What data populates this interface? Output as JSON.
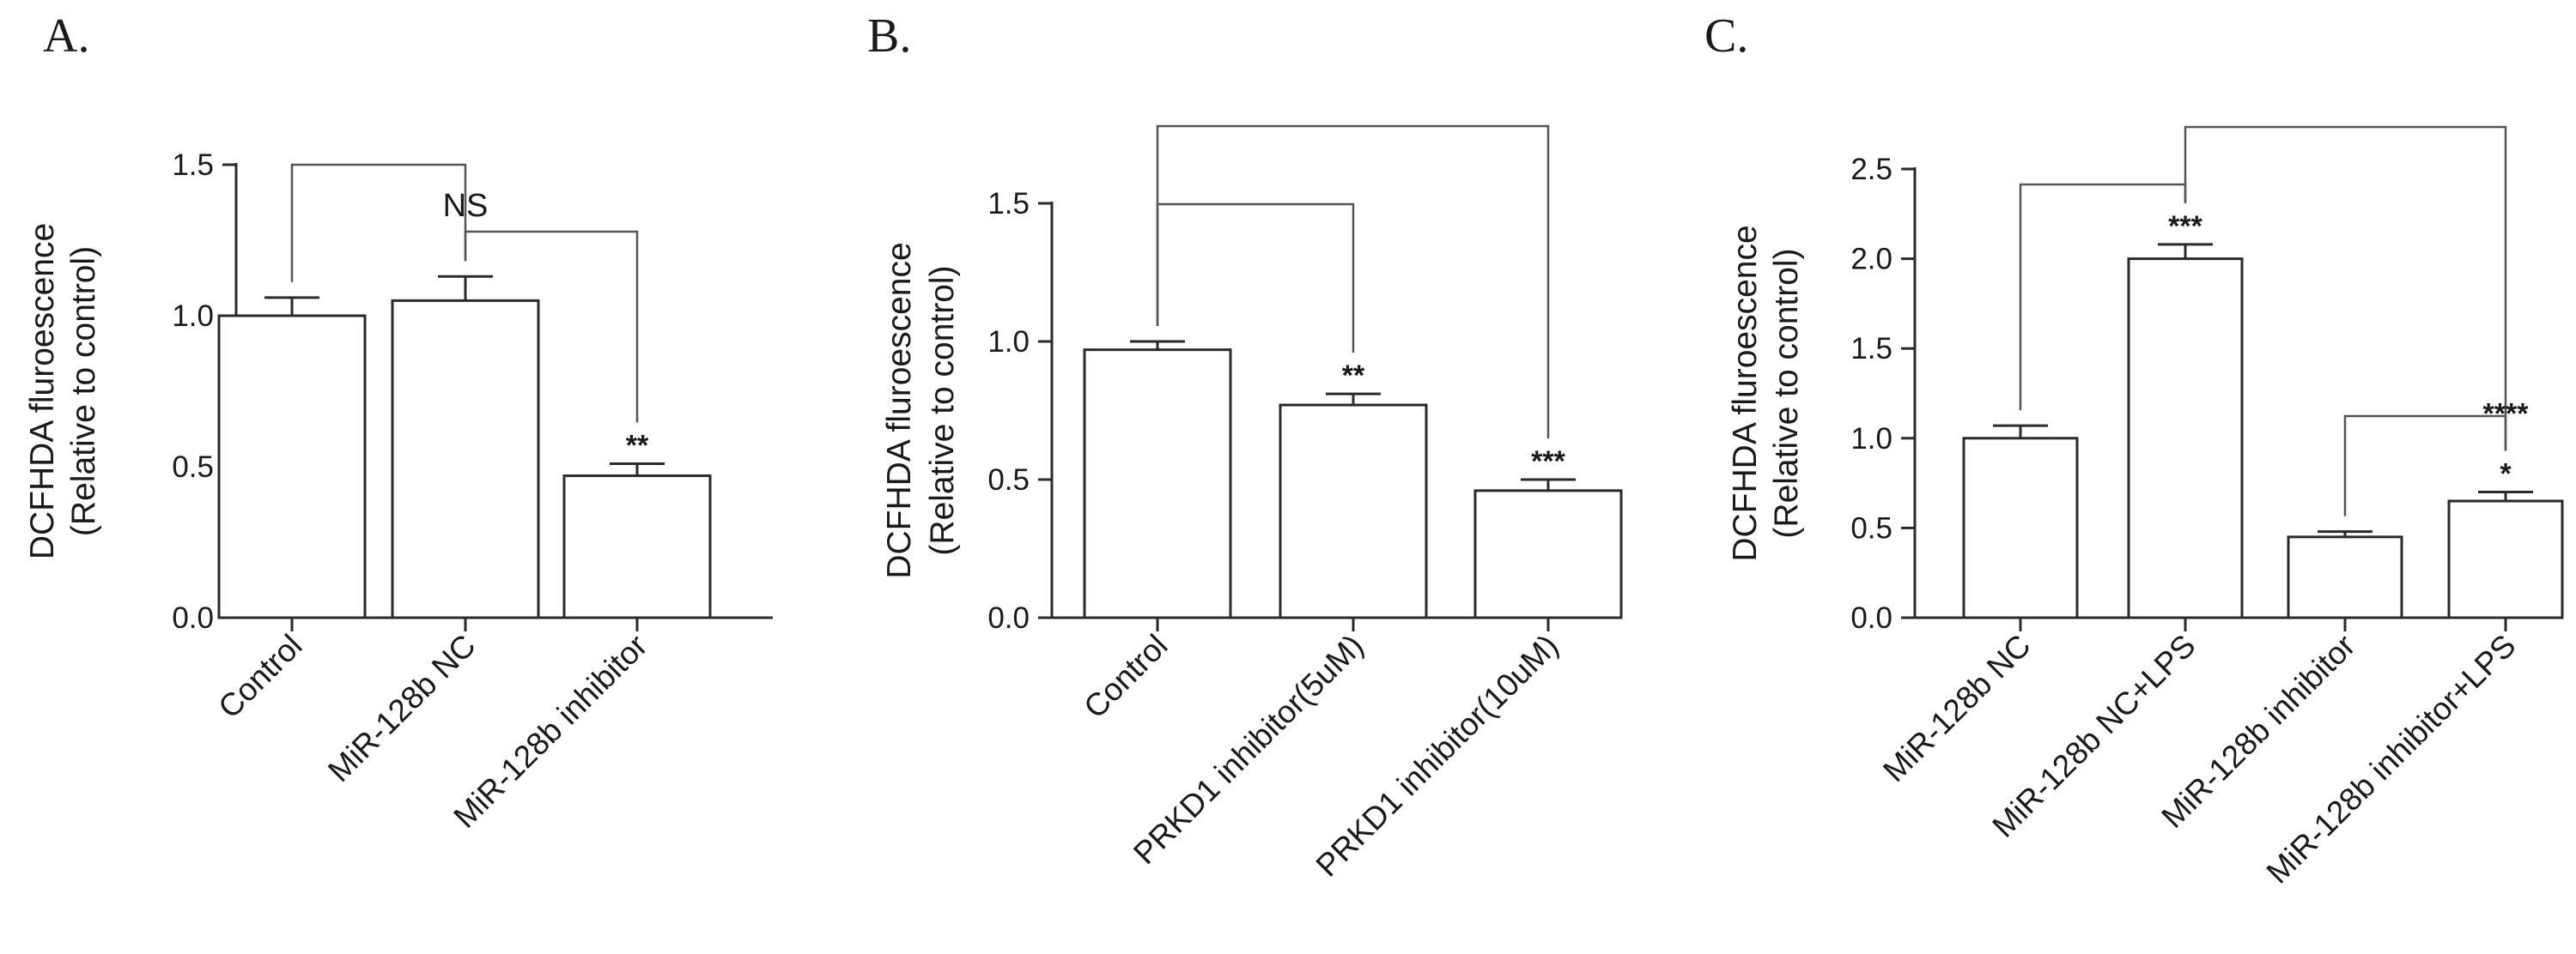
{
  "chart_data": [
    {
      "type": "bar",
      "panel_label": "A.",
      "ylabel": [
        "DCFHDA fluroescence",
        "(Relative to control)"
      ],
      "ylim": [
        0,
        1.5
      ],
      "yticks": [
        "0.0",
        "0.5",
        "1.0",
        "1.5"
      ],
      "categories": [
        "Control",
        "MiR-128b NC",
        "MiR-128b inhibitor"
      ],
      "values": [
        1.0,
        1.05,
        0.47
      ],
      "errors": [
        0.06,
        0.08,
        0.04
      ],
      "stars": [
        "",
        "",
        "**"
      ],
      "annotations": [
        {
          "from": 0,
          "to": 1,
          "label": "NS"
        },
        {
          "from": 1,
          "to": 2,
          "label": ""
        }
      ]
    },
    {
      "type": "bar",
      "panel_label": "B.",
      "ylabel": [
        "DCFHDA fluroescence",
        "(Relative to control)"
      ],
      "ylim": [
        0,
        1.5
      ],
      "yticks": [
        "0.0",
        "0.5",
        "1.0",
        "1.5"
      ],
      "categories": [
        "Control",
        "PRKD1 inhibitor(5uM)",
        "PRKD1 inhibitor(10uM)"
      ],
      "values": [
        0.97,
        0.77,
        0.46
      ],
      "errors": [
        0.03,
        0.04,
        0.04
      ],
      "stars": [
        "",
        "**",
        "***"
      ],
      "annotations": [
        {
          "from": 0,
          "to": 1,
          "label": ""
        },
        {
          "from": 0,
          "to": 2,
          "label": ""
        }
      ]
    },
    {
      "type": "bar",
      "panel_label": "C.",
      "ylabel": [
        "DCFHDA fluroescence",
        "(Relative to control)"
      ],
      "ylim": [
        0,
        2.5
      ],
      "yticks": [
        "0.0",
        "0.5",
        "1.0",
        "1.5",
        "2.0",
        "2.5"
      ],
      "categories": [
        "MiR-128b NC",
        "MiR-128b NC+LPS",
        "MiR-128b inhibitor",
        "MiR-128b inhibitor+LPS"
      ],
      "values": [
        1.0,
        2.0,
        0.45,
        0.65
      ],
      "errors": [
        0.07,
        0.08,
        0.03,
        0.05
      ],
      "stars": [
        "",
        "***",
        "",
        "*"
      ],
      "annotations": [
        {
          "from": 0,
          "to": 1,
          "label": ""
        },
        {
          "from": 1,
          "to": 3,
          "label": "****"
        },
        {
          "from": 2,
          "to": 3,
          "label": ""
        }
      ]
    }
  ]
}
